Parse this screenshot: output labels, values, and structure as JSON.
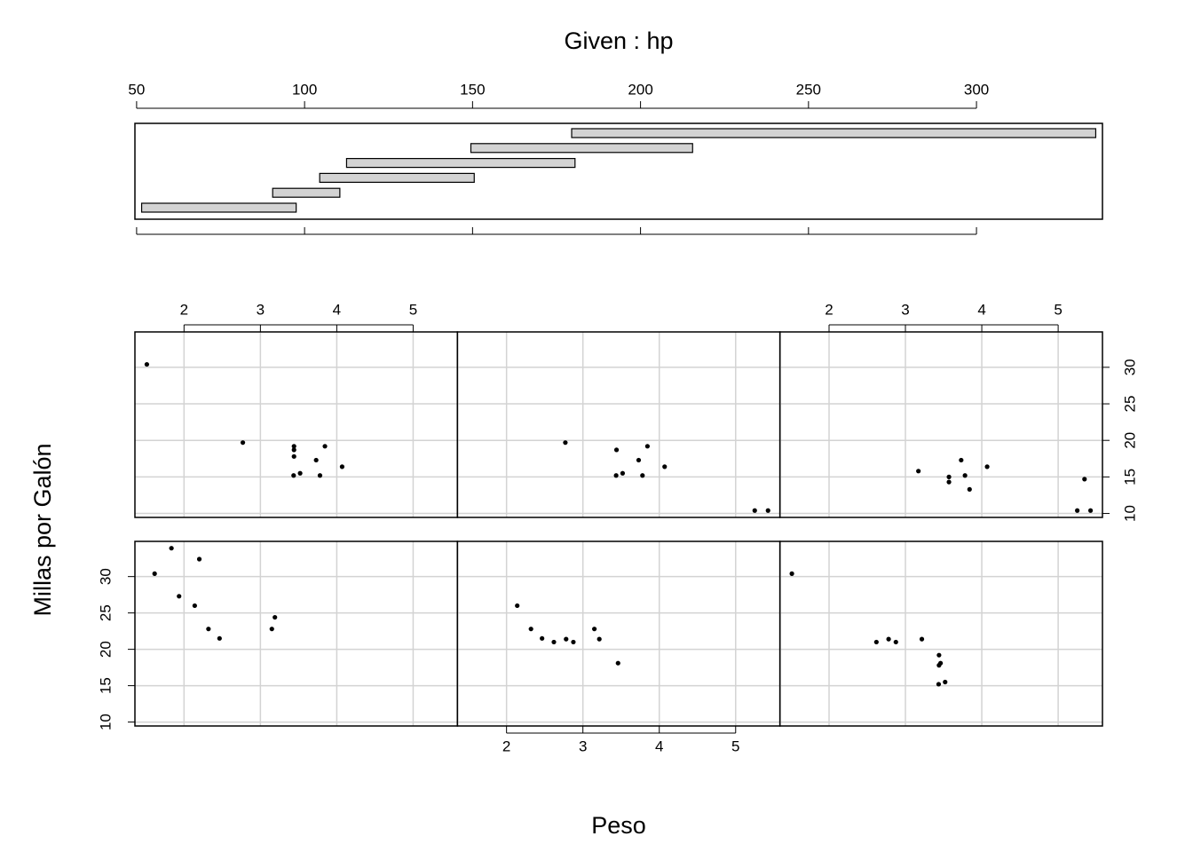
{
  "chart_data": {
    "type": "coplot",
    "title": "Given : hp",
    "xlabel": "Peso",
    "ylabel": "Millas por Galón",
    "given": {
      "xlim": [
        49.5,
        337.5
      ],
      "xticks": [
        50,
        100,
        150,
        200,
        250,
        300
      ],
      "intervals": [
        [
          51.5,
          97.5
        ],
        [
          90.5,
          110.5
        ],
        [
          104.5,
          150.5
        ],
        [
          112.5,
          180.5
        ],
        [
          149.5,
          215.5
        ],
        [
          179.5,
          335.5
        ]
      ]
    },
    "xlim": [
      1.357,
      5.58
    ],
    "xticks": [
      2,
      3,
      4,
      5
    ],
    "ylim": [
      9.46,
      34.84
    ],
    "yticks": [
      10,
      15,
      20,
      25,
      30
    ],
    "grid": true,
    "color": "#000000",
    "panels": [
      {
        "x": [
          1.615,
          1.835,
          2.2,
          1.935,
          2.14,
          2.32,
          2.465,
          3.19,
          3.15
        ],
        "y": [
          30.4,
          33.9,
          32.4,
          27.3,
          26.0,
          22.8,
          21.5,
          24.4,
          22.8
        ]
      },
      {
        "x": [
          2.14,
          2.32,
          3.15,
          2.465,
          3.46,
          2.78,
          2.62,
          2.875,
          3.215
        ],
        "y": [
          26.0,
          22.8,
          22.8,
          21.5,
          18.1,
          21.4,
          21.0,
          21.0,
          21.4
        ]
      },
      {
        "x": [
          3.46,
          2.78,
          2.62,
          2.875,
          3.215,
          1.513,
          3.44,
          3.44,
          3.52,
          3.435
        ],
        "y": [
          18.1,
          21.4,
          21.0,
          21.0,
          21.4,
          30.4,
          19.2,
          17.8,
          15.5,
          15.2
        ]
      },
      {
        "x": [
          1.513,
          3.44,
          3.44,
          3.52,
          3.435,
          3.44,
          3.845,
          2.77,
          4.07,
          3.73,
          3.78
        ],
        "y": [
          30.4,
          19.2,
          17.8,
          15.5,
          15.2,
          18.7,
          19.2,
          19.7,
          16.4,
          17.3,
          15.2
        ]
      },
      {
        "x": [
          3.52,
          3.435,
          3.44,
          3.845,
          2.77,
          4.07,
          3.73,
          3.78,
          5.25,
          5.424
        ],
        "y": [
          15.5,
          15.2,
          18.7,
          19.2,
          19.7,
          16.4,
          17.3,
          15.2,
          10.4,
          10.4
        ]
      },
      {
        "x": [
          4.07,
          3.73,
          3.78,
          5.25,
          5.424,
          5.345,
          3.57,
          3.84,
          3.17,
          3.57
        ],
        "y": [
          16.4,
          17.3,
          15.2,
          10.4,
          10.4,
          14.7,
          14.3,
          13.3,
          15.8,
          15.0
        ]
      }
    ]
  }
}
